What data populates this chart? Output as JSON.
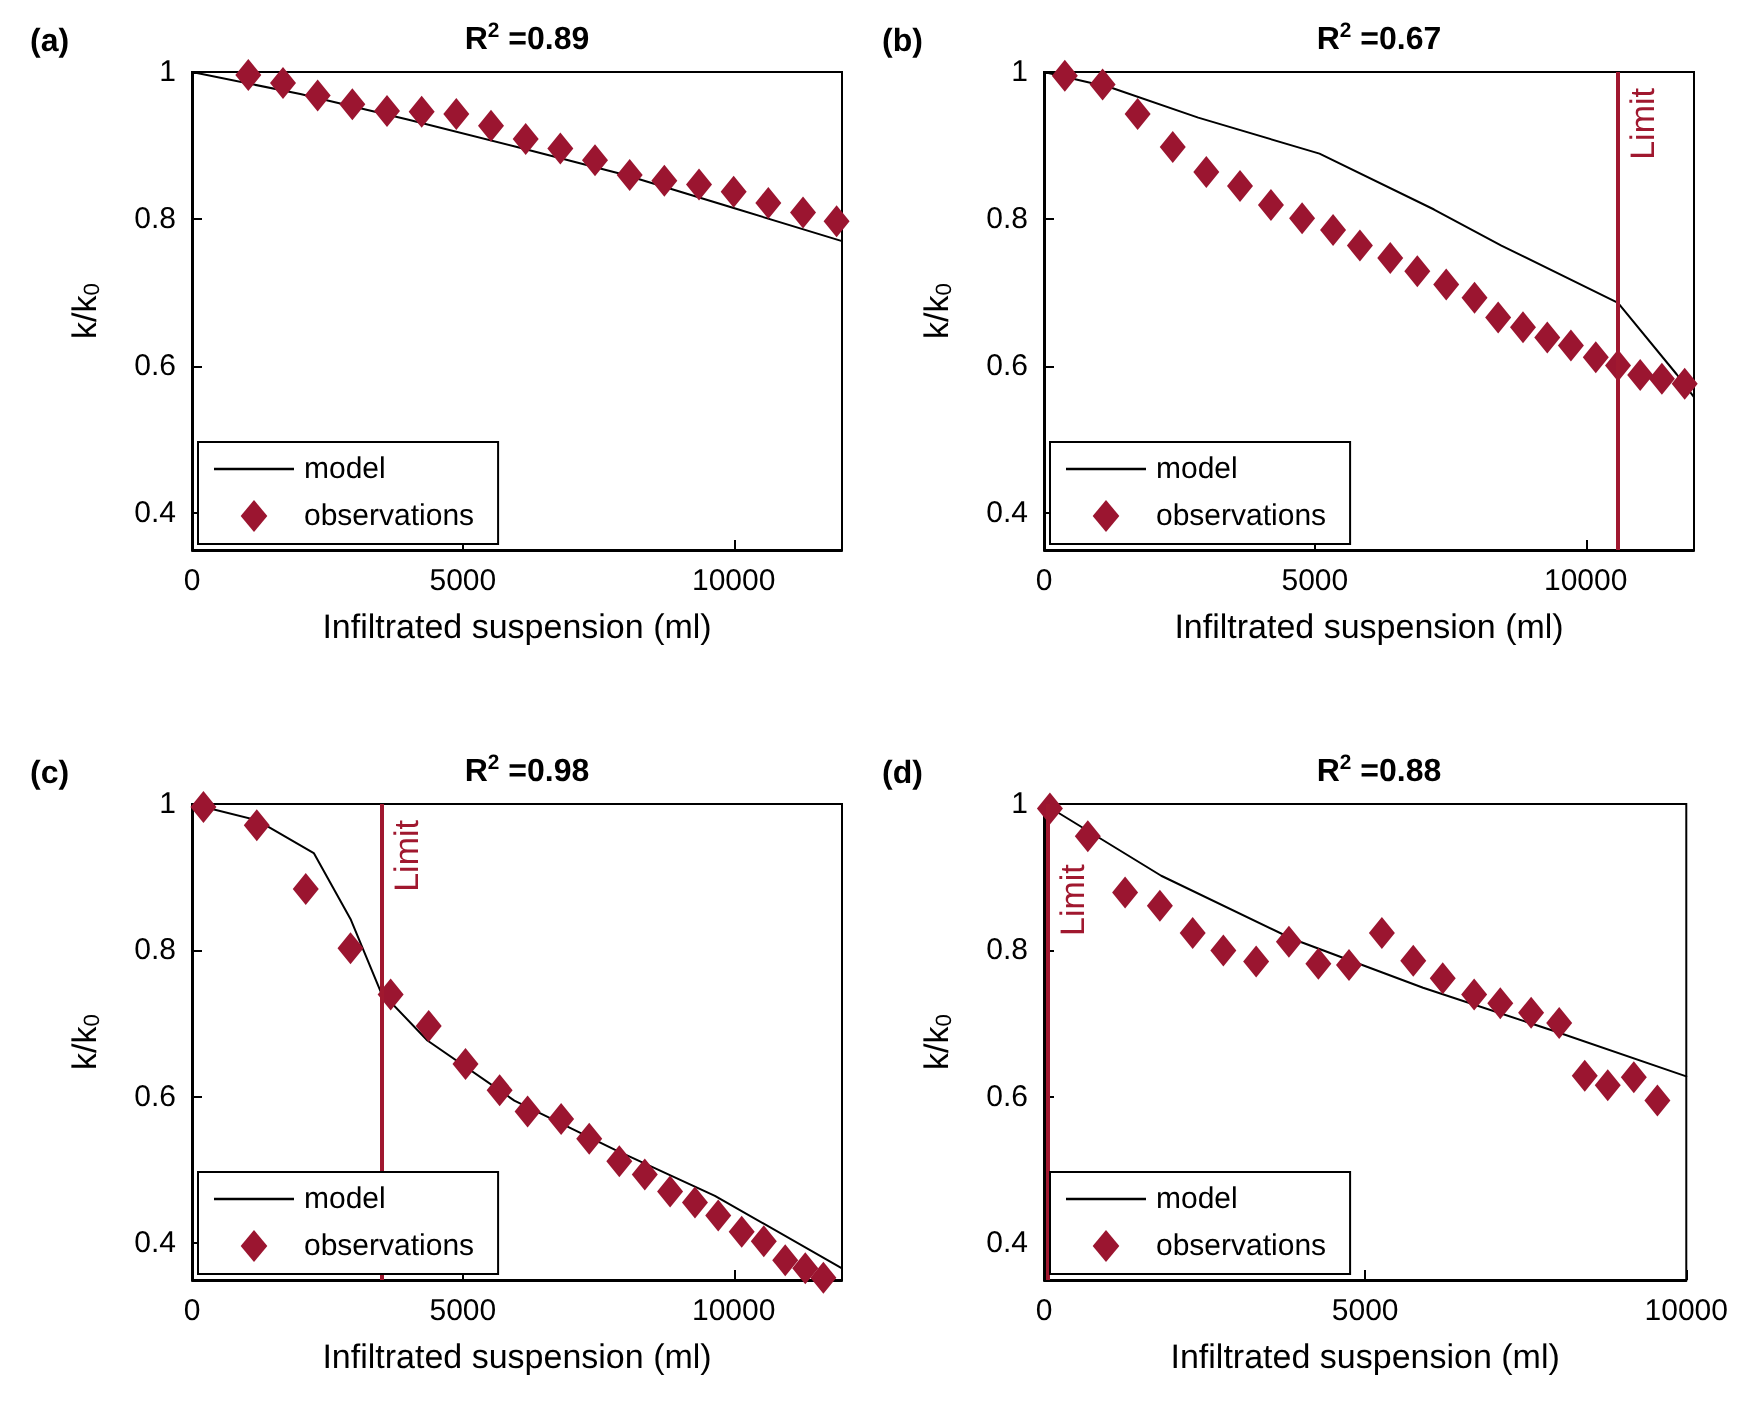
{
  "chart_data": [
    {
      "type": "scatter",
      "title": "R$^{2}$ =0.89",
      "annotations": [
        "(a)"
      ],
      "xlabel": "Infiltrated suspension (ml)",
      "ylabel": "k/k$_{0}$",
      "xlim": [
        0,
        12000
      ],
      "xticks": [
        0,
        5000,
        10000
      ],
      "ylim": [
        0.35,
        1
      ],
      "yticks": [
        0.4,
        0.6,
        0.8,
        1
      ],
      "legend": "bottom left",
      "series": [
        {
          "name": "model",
          "type": "line",
          "color": "#000000",
          "marker": "none",
          "line_style": "solid",
          "x": [
            0,
            2000,
            4000,
            6000,
            8000,
            10000,
            12000
          ],
          "values": [
            1,
            0.97,
            0.935,
            0.898,
            0.86,
            0.815,
            0.77
          ]
        },
        {
          "name": "observations",
          "color": "#9b1530",
          "marker": "diamond",
          "x": [
            1040,
            1680,
            2320,
            2960,
            3600,
            4240,
            4880,
            5520,
            6160,
            6800,
            7440,
            8080,
            8720,
            9360,
            10000,
            10640,
            11280,
            11900
          ],
          "values": [
            0.996,
            0.985,
            0.968,
            0.956,
            0.947,
            0.946,
            0.943,
            0.927,
            0.909,
            0.896,
            0.88,
            0.86,
            0.852,
            0.847,
            0.837,
            0.822,
            0.809,
            0.797
          ]
        }
      ]
    },
    {
      "type": "scatter",
      "title": "R$^{2}$ =0.67",
      "annotations": [
        "(b)"
      ],
      "xlabel": "Infiltrated suspension (ml)",
      "ylabel": "k/k$_{0}$",
      "xlim": [
        0,
        12000
      ],
      "xticks": [
        0,
        5000,
        10000
      ],
      "ylim": [
        0.35,
        1
      ],
      "yticks": [
        0.4,
        0.6,
        0.8,
        1
      ],
      "legend": "bottom left",
      "ref_lines": [
        {
          "axis": "x",
          "value": 10600,
          "label": "Limit",
          "color": "#a0182f"
        }
      ],
      "series": [
        {
          "name": "model",
          "type": "line",
          "color": "#000000",
          "marker": "none",
          "line_style": "solid",
          "x": [
            0,
            1231,
            2847,
            5086,
            7201,
            8444,
            10597,
            11679,
            12000
          ],
          "values": [
            1,
            0.979,
            0.938,
            0.889,
            0.813,
            0.764,
            0.686,
            0.589,
            0.558
          ]
        },
        {
          "name": "observations",
          "color": "#9b1530",
          "marker": "diamond",
          "x": [
            384,
            1082,
            1728,
            2377,
            2996,
            3619,
            4190,
            4765,
            5336,
            5832,
            6392,
            6892,
            7425,
            7948,
            8384,
            8843,
            9291,
            9727,
            10187,
            10597,
            11007,
            11407,
            11828
          ],
          "values": [
            0.995,
            0.983,
            0.943,
            0.898,
            0.864,
            0.845,
            0.819,
            0.801,
            0.785,
            0.764,
            0.747,
            0.729,
            0.711,
            0.693,
            0.666,
            0.653,
            0.639,
            0.628,
            0.612,
            0.601,
            0.588,
            0.583,
            0.576
          ]
        }
      ]
    },
    {
      "type": "scatter",
      "title": "R$^{2}$ =0.98",
      "annotations": [
        "(c)"
      ],
      "xlabel": "Infiltrated suspension (ml)",
      "ylabel": "k/k$_{0}$",
      "xlim": [
        0,
        12000
      ],
      "xticks": [
        0,
        5000,
        10000
      ],
      "ylim": [
        0.35,
        1
      ],
      "yticks": [
        0.4,
        0.6,
        0.8,
        1
      ],
      "legend": "bottom left",
      "ref_lines": [
        {
          "axis": "x",
          "value": 3500,
          "label": "Limit",
          "color": "#a0182f"
        }
      ],
      "series": [
        {
          "name": "model",
          "type": "line",
          "color": "#000000",
          "marker": "none",
          "line_style": "solid",
          "x": [
            0,
            1196,
            2248,
            2926,
            3481,
            4346,
            5951,
            7802,
            9654,
            12000
          ],
          "values": [
            1,
            0.978,
            0.933,
            0.843,
            0.744,
            0.677,
            0.595,
            0.528,
            0.465,
            0.366
          ]
        },
        {
          "name": "observations",
          "color": "#9b1530",
          "marker": "diamond",
          "x": [
            211,
            1196,
            2100,
            2926,
            3667,
            4370,
            5049,
            5679,
            6196,
            6815,
            7333,
            7889,
            8359,
            8826,
            9285,
            9715,
            10148,
            10556,
            10952,
            11322,
            11656
          ],
          "values": [
            0.996,
            0.971,
            0.884,
            0.803,
            0.74,
            0.697,
            0.645,
            0.609,
            0.58,
            0.57,
            0.543,
            0.512,
            0.494,
            0.471,
            0.456,
            0.438,
            0.416,
            0.403,
            0.377,
            0.366,
            0.353
          ]
        }
      ]
    },
    {
      "type": "scatter",
      "title": "R$^{2}$ =0.88",
      "annotations": [
        "(d)"
      ],
      "xlabel": "Infiltrated suspension (ml)",
      "ylabel": "k/k$_{0}$",
      "xlim": [
        0,
        10000
      ],
      "xticks": [
        0,
        5000,
        10000
      ],
      "ylim": [
        0.35,
        1
      ],
      "yticks": [
        0.4,
        0.6,
        0.8,
        1
      ],
      "legend": "bottom left",
      "ref_lines": [
        {
          "axis": "x",
          "value": 70,
          "label": "Limit",
          "color": "#a0182f"
        }
      ],
      "series": [
        {
          "name": "model",
          "type": "line",
          "color": "#000000",
          "marker": "none",
          "line_style": "solid",
          "x": [
            0,
            1825,
            3863,
            5902,
            7941,
            10000
          ],
          "values": [
            1,
            0.902,
            0.816,
            0.749,
            0.69,
            0.628
          ]
        },
        {
          "name": "observations",
          "color": "#9b1530",
          "marker": "diamond",
          "x": [
            92,
            682,
            1263,
            1804,
            2315,
            2792,
            3303,
            3813,
            4272,
            4749,
            5260,
            5749,
            6208,
            6697,
            7104,
            7584,
            8021,
            8419,
            8777,
            9183,
            9550
          ],
          "values": [
            0.994,
            0.956,
            0.879,
            0.861,
            0.824,
            0.8,
            0.785,
            0.812,
            0.782,
            0.78,
            0.824,
            0.786,
            0.762,
            0.74,
            0.728,
            0.715,
            0.701,
            0.629,
            0.616,
            0.627,
            0.595
          ]
        }
      ]
    }
  ]
}
